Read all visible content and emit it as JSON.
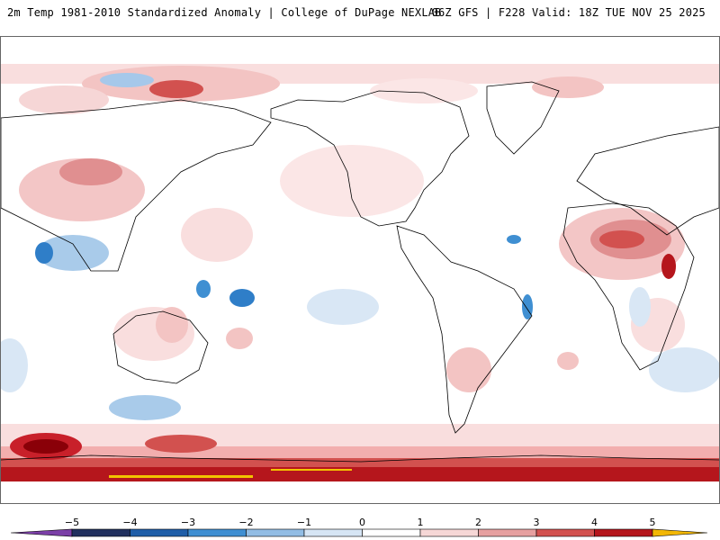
{
  "header": {
    "title": "2m Temp 1981-2010 Standardized Anomaly | College of DuPage NEXLAB",
    "run_info": "06Z GFS | F228 Valid: 18Z TUE NOV 25 2025"
  },
  "legend": {
    "labels": [
      "-5",
      "-4",
      "-3",
      "-2",
      "-1",
      "0",
      "1",
      "2",
      "3",
      "4",
      "5"
    ],
    "colors": [
      "#7b3fa7",
      "#21305e",
      "#1f5ea8",
      "#3f8fd2",
      "#92bde4",
      "#d6e5f4",
      "#ffffff",
      "#f6d7d6",
      "#e6a0a0",
      "#d2514f",
      "#b5161c",
      "#7a0008",
      "#f2b705"
    ]
  },
  "map": {
    "colors": {
      "land_outline": "#000000",
      "background": "#ffffff",
      "warm_light": "#f9dede",
      "warm_mid": "#ef9fa0",
      "warm_strong": "#c8202a",
      "warm_extreme": "#8a0008",
      "cool_light": "#d9e7f5",
      "cool_mid": "#8fbde6",
      "cool_strong": "#2f7ec8",
      "yellow": "#f2c300"
    }
  }
}
